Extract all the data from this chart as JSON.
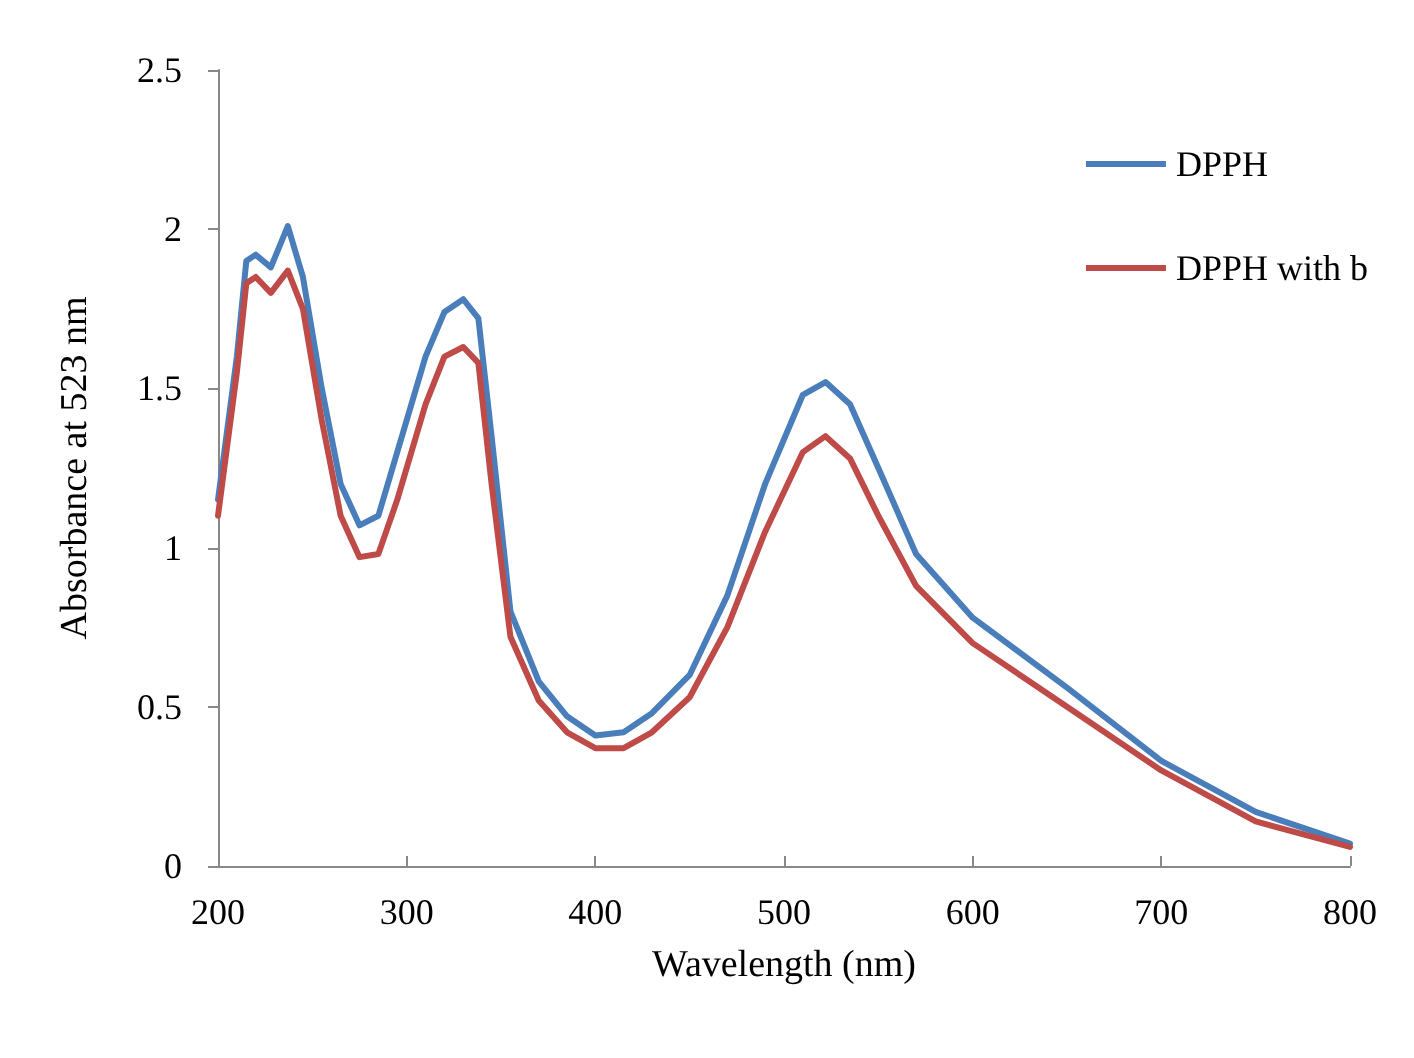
{
  "chart_data": {
    "type": "line",
    "xlabel": "Wavelength (nm)",
    "ylabel": "Absorbance at 523 nm",
    "xlim": [
      200,
      800
    ],
    "xticks": [
      200,
      300,
      400,
      500,
      600,
      700,
      800
    ],
    "ylim": [
      0,
      2.5
    ],
    "yticks": [
      0,
      0.5,
      1,
      1.5,
      2,
      2.5
    ],
    "grid": false,
    "legend": "top right",
    "marker": "none",
    "line_style": "solid",
    "x": [
      200,
      210,
      215,
      220,
      228,
      237,
      245,
      255,
      265,
      275,
      285,
      295,
      310,
      320,
      330,
      338,
      345,
      355,
      370,
      385,
      400,
      415,
      430,
      450,
      470,
      490,
      510,
      522,
      535,
      550,
      570,
      600,
      650,
      700,
      750,
      800
    ],
    "series": [
      {
        "name": "DPPH",
        "color": "#4a7ebb",
        "values": [
          1.15,
          1.6,
          1.9,
          1.92,
          1.88,
          2.01,
          1.85,
          1.5,
          1.2,
          1.07,
          1.1,
          1.3,
          1.6,
          1.74,
          1.78,
          1.72,
          1.35,
          0.8,
          0.58,
          0.47,
          0.41,
          0.42,
          0.48,
          0.6,
          0.85,
          1.2,
          1.48,
          1.52,
          1.45,
          1.25,
          0.98,
          0.78,
          0.56,
          0.33,
          0.17,
          0.07
        ]
      },
      {
        "name": "DPPH with b",
        "color": "#be4b48",
        "values": [
          1.1,
          1.55,
          1.83,
          1.85,
          1.8,
          1.87,
          1.75,
          1.4,
          1.1,
          0.97,
          0.98,
          1.15,
          1.45,
          1.6,
          1.63,
          1.58,
          1.2,
          0.72,
          0.52,
          0.42,
          0.37,
          0.37,
          0.42,
          0.53,
          0.75,
          1.05,
          1.3,
          1.35,
          1.28,
          1.1,
          0.88,
          0.7,
          0.5,
          0.3,
          0.14,
          0.06
        ]
      }
    ]
  }
}
